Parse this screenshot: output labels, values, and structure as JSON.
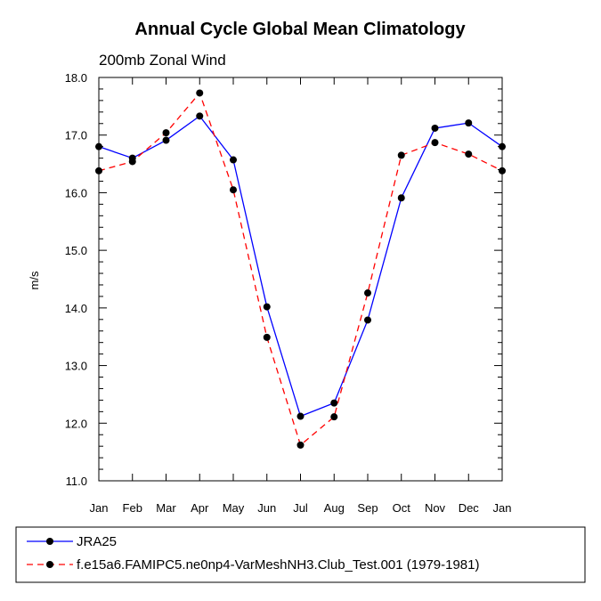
{
  "chart_data": {
    "type": "line",
    "title": "Annual Cycle Global Mean Climatology",
    "subtitle": "200mb Zonal Wind",
    "ylabel": "m/s",
    "xlabel": "",
    "categories": [
      "Jan",
      "Feb",
      "Mar",
      "Apr",
      "May",
      "Jun",
      "Jul",
      "Aug",
      "Sep",
      "Oct",
      "Nov",
      "Dec",
      "Jan"
    ],
    "ylim": [
      11.0,
      18.0
    ],
    "yticks": [
      "11.0",
      "12.0",
      "13.0",
      "14.0",
      "15.0",
      "16.0",
      "17.0",
      "18.0"
    ],
    "grid": false,
    "legend_position": "bottom",
    "series": [
      {
        "name": "JRA25",
        "color": "#0000ff",
        "dash": "solid",
        "values": [
          16.8,
          16.6,
          16.91,
          17.33,
          16.57,
          14.02,
          12.12,
          12.35,
          13.79,
          15.91,
          17.12,
          17.21,
          16.8
        ]
      },
      {
        "name": "f.e15a6.FAMIPC5.ne0np4-VarMeshNH3.Club_Test.001 (1979-1981)",
        "color": "#ff0000",
        "dash": "dashed",
        "values": [
          16.38,
          16.54,
          17.04,
          17.73,
          16.05,
          13.49,
          11.62,
          12.11,
          14.26,
          16.65,
          16.87,
          16.67,
          16.38
        ]
      }
    ]
  }
}
